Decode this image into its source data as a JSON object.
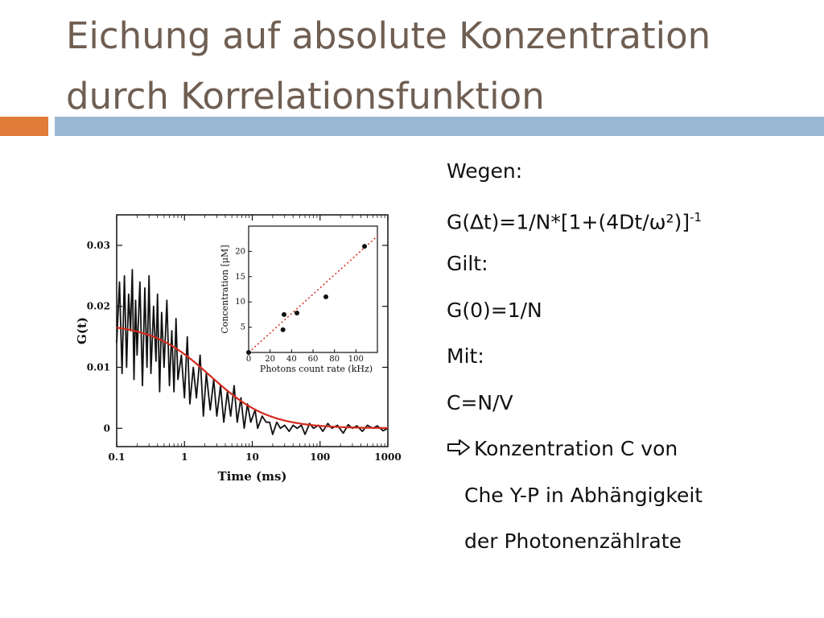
{
  "slide": {
    "title_line1": "Eichung auf absolute Konzentration",
    "title_line2": "durch Korrelationsfunktion",
    "colors": {
      "title": "#6f5e52",
      "accent_orange": "#e07b39",
      "accent_blue": "#9ab8d4"
    }
  },
  "text": {
    "line1": "Wegen:",
    "line2_main": "G(∆t)=1/N*[1+(4Dt/ω²)]",
    "line2_sup": "-1",
    "line3": "Gilt:",
    "line4": "G(0)=1/N",
    "line5": "Mit:",
    "line6": "C=N/V",
    "line7": "Konzentration C von",
    "line7_icon": "arrow-right-icon",
    "line8": "Che Y-P in Abhängigkeit",
    "line9": "der Photonenzählrate"
  },
  "chart_data": [
    {
      "type": "line",
      "xlabel": "Time (ms)",
      "ylabel": "G(t)",
      "xscale": "log",
      "xlim": [
        0.1,
        1000
      ],
      "ylim": [
        -0.003,
        0.035
      ],
      "xticks": [
        0.1,
        1,
        10,
        100,
        1000
      ],
      "xtick_labels": [
        "0.1",
        "1",
        "10",
        "100",
        "1000"
      ],
      "yticks": [
        0,
        0.01,
        0.02,
        0.03
      ],
      "ytick_labels": [
        "0",
        "0.01",
        "0.02",
        "0.03"
      ],
      "grid": false,
      "series": [
        {
          "style": "measured",
          "color": "#111111",
          "x": [
            0.1,
            0.11,
            0.12,
            0.13,
            0.14,
            0.15,
            0.16,
            0.17,
            0.18,
            0.19,
            0.2,
            0.22,
            0.24,
            0.26,
            0.28,
            0.3,
            0.32,
            0.35,
            0.38,
            0.4,
            0.43,
            0.46,
            0.5,
            0.55,
            0.6,
            0.65,
            0.7,
            0.75,
            0.8,
            0.9,
            1.0,
            1.1,
            1.2,
            1.35,
            1.5,
            1.7,
            1.9,
            2.1,
            2.4,
            2.7,
            3.0,
            3.4,
            3.8,
            4.3,
            4.8,
            5.4,
            6.0,
            6.8,
            7.6,
            8.5,
            9.5,
            11,
            12,
            14,
            16,
            18,
            20,
            23,
            26,
            30,
            35,
            40,
            46,
            53,
            60,
            70,
            80,
            95,
            110,
            130,
            150,
            180,
            220,
            260,
            300,
            350,
            420,
            500,
            600,
            700,
            850,
            1000
          ],
          "y": [
            0.014,
            0.024,
            0.009,
            0.025,
            0.01,
            0.022,
            0.016,
            0.026,
            0.008,
            0.021,
            0.012,
            0.024,
            0.007,
            0.023,
            0.01,
            0.025,
            0.009,
            0.02,
            0.011,
            0.022,
            0.006,
            0.019,
            0.01,
            0.021,
            0.007,
            0.016,
            0.006,
            0.018,
            0.008,
            0.012,
            0.005,
            0.015,
            0.004,
            0.01,
            0.005,
            0.012,
            0.002,
            0.009,
            0.003,
            0.008,
            0.002,
            0.007,
            0.001,
            0.006,
            0.002,
            0.007,
            0.001,
            0.005,
            0.0,
            0.004,
            0.001,
            0.003,
            0.0,
            0.002,
            0.001,
            0.001,
            -0.001,
            0.001,
            0.0,
            0.0005,
            -0.0005,
            0.0005,
            0.0,
            0.0005,
            -0.001,
            0.0008,
            0.0,
            0.0005,
            -0.0005,
            0.0008,
            0.0,
            0.0005,
            -0.0008,
            0.0006,
            0.0,
            0.0004,
            -0.0005,
            0.0005,
            0.0,
            0.0004,
            -0.0004,
            0.0
          ]
        },
        {
          "style": "fit",
          "color": "#d42a1e",
          "model": "G0/(1+t/tauD)",
          "G0": 0.0172,
          "tauD": 2.4
        }
      ]
    },
    {
      "type": "scatter",
      "xlabel": "Photons count rate (kHz)",
      "ylabel": "Concentration [μM]",
      "xlim": [
        0,
        120
      ],
      "ylim": [
        0,
        25
      ],
      "xticks": [
        0,
        20,
        40,
        60,
        80,
        100
      ],
      "xtick_labels": [
        "0",
        "20",
        "40",
        "60",
        "80",
        "100"
      ],
      "yticks": [
        5,
        10,
        15,
        20
      ],
      "ytick_labels": [
        "5",
        "10",
        "15",
        "20"
      ],
      "grid": false,
      "series": [
        {
          "style": "points",
          "color": "#111111",
          "x": [
            0,
            32,
            33,
            45,
            72,
            108
          ],
          "y": [
            0,
            4.5,
            7.5,
            7.8,
            11,
            21
          ]
        },
        {
          "style": "dotted-fit",
          "color": "#d42a1e",
          "slope": 0.192,
          "intercept": 0
        }
      ]
    }
  ]
}
